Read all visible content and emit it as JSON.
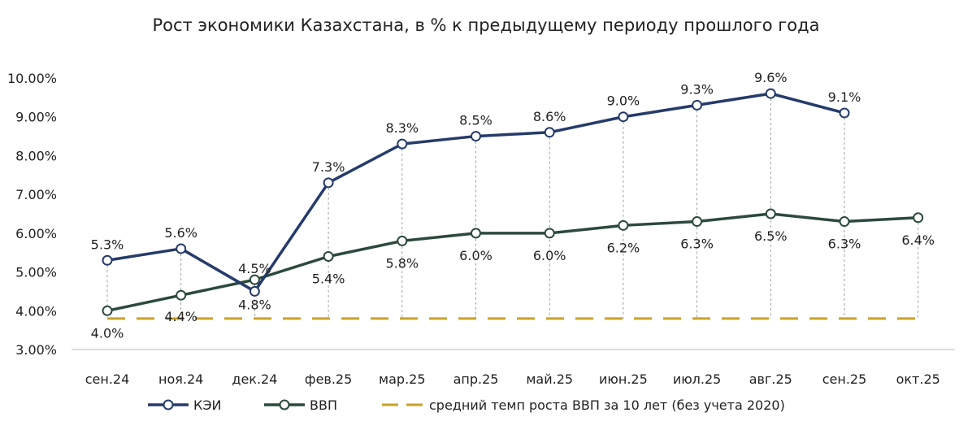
{
  "chart_data": {
    "type": "line",
    "title": "Рост экономики Казахстана, в % к предыдущему периоду прошлого года",
    "categories": [
      "сен.24",
      "ноя.24",
      "дек.24",
      "фев.25",
      "мар.25",
      "апр.25",
      "май.25",
      "июн.25",
      "июл.25",
      "авг.25",
      "сен.25",
      "окт.25"
    ],
    "ylim": [
      3,
      10
    ],
    "yticks": [
      "3.00%",
      "4.00%",
      "5.00%",
      "6.00%",
      "7.00%",
      "8.00%",
      "9.00%",
      "10.00%"
    ],
    "grid": false,
    "legend_position": "bottom",
    "series": [
      {
        "name": "КЭИ",
        "color": "#253b6b",
        "values": [
          5.3,
          5.6,
          4.5,
          7.3,
          8.3,
          8.5,
          8.6,
          9.0,
          9.3,
          9.6,
          9.1,
          null
        ],
        "labels": [
          "5.3%",
          "5.6%",
          "4.5%",
          "7.3%",
          "8.3%",
          "8.5%",
          "8.6%",
          "9.0%",
          "9.3%",
          "9.6%",
          "9.1%",
          null
        ]
      },
      {
        "name": "ВВП",
        "color": "#2c4a3b",
        "values": [
          4.0,
          4.4,
          4.8,
          5.4,
          5.8,
          6.0,
          6.0,
          6.2,
          6.3,
          6.5,
          6.3,
          6.4
        ],
        "labels": [
          "4.0%",
          "4.4%",
          "4.8%",
          "5.4%",
          "5.8%",
          "6.0%",
          "6.0%",
          "6.2%",
          "6.3%",
          "6.5%",
          "6.3%",
          "6.4%"
        ]
      },
      {
        "name": "средний темп роста ВВП за 10 лет (без учета 2020)",
        "color": "#c9a227",
        "style": "dashed",
        "values": [
          3.8,
          3.8,
          3.8,
          3.8,
          3.8,
          3.8,
          3.8,
          3.8,
          3.8,
          3.8,
          3.8,
          3.8
        ]
      }
    ]
  }
}
